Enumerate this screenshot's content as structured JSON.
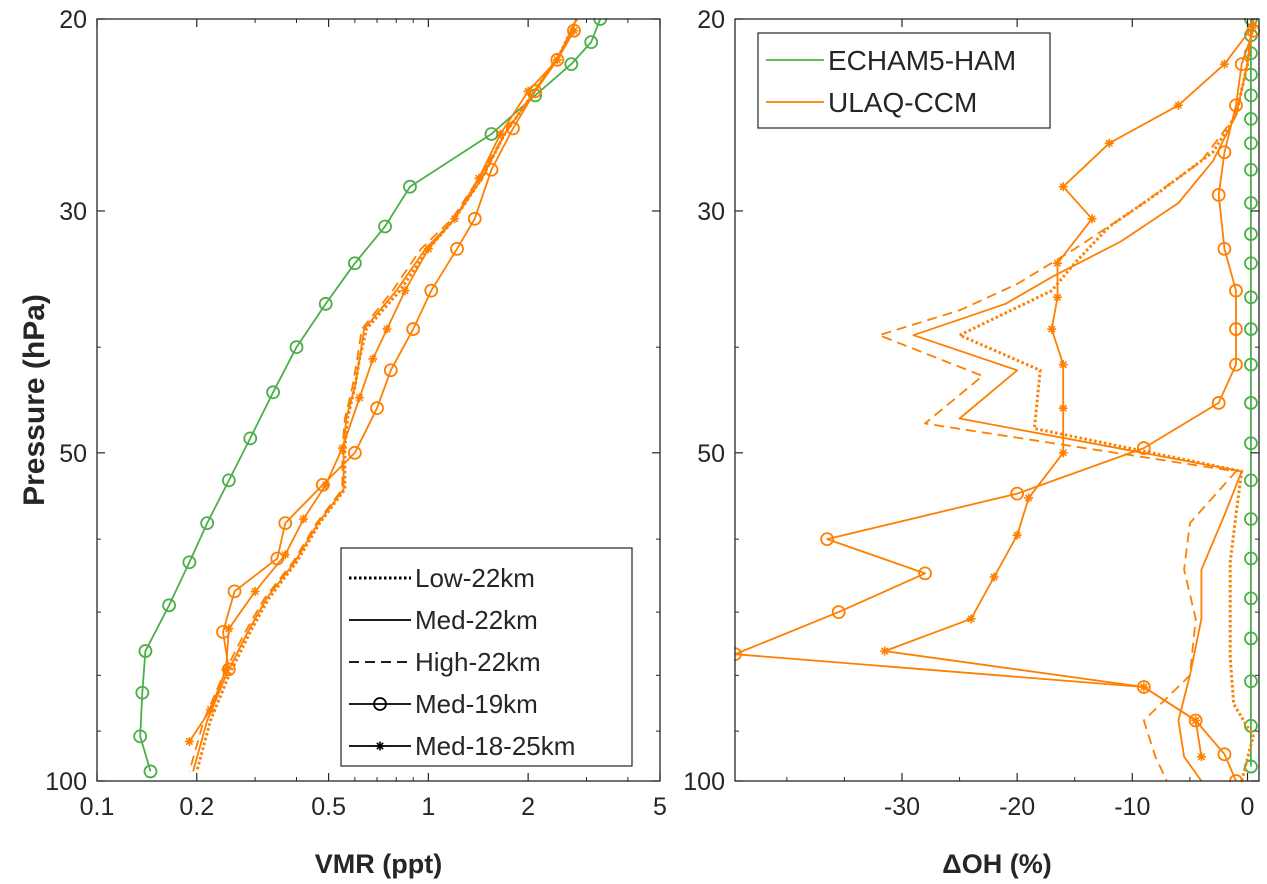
{
  "colors": {
    "green": "#4daf4a",
    "orange": "#ff7f00",
    "axis": "#262626"
  },
  "chart_data": [
    {
      "type": "line",
      "xscale": "log",
      "yscale": "log",
      "yreverse": true,
      "xlim": [
        0.1,
        5
      ],
      "ylim": [
        20,
        100
      ],
      "xticks": [
        0.1,
        0.2,
        0.5,
        1,
        2,
        5
      ],
      "xtick_labels": [
        "0.1",
        "0.2",
        "0.5",
        "1",
        "2",
        "5"
      ],
      "yticks": [
        20,
        30,
        50,
        100
      ],
      "ytick_labels": [
        "20",
        "30",
        "50",
        "100"
      ],
      "xlabel": "VMR (ppt)",
      "ylabel": "Pressure (hPa)",
      "legend": {
        "placement": "bottom-right",
        "items": [
          {
            "label": "Low-22km",
            "style": "dotted"
          },
          {
            "label": "Med-22km",
            "style": "solid"
          },
          {
            "label": "High-22km",
            "style": "dashed"
          },
          {
            "label": "Med-19km",
            "style": "solid",
            "marker": "circle"
          },
          {
            "label": "Med-18-25km",
            "style": "solid",
            "marker": "star"
          }
        ]
      },
      "series": [
        {
          "model": "ECHAM5-HAM",
          "color": "green",
          "style": "solid",
          "marker": "circle",
          "points": [
            [
              3.3,
              20
            ],
            [
              3.1,
              21
            ],
            [
              2.7,
              22
            ],
            [
              2.1,
              23.5
            ],
            [
              1.55,
              25.5
            ],
            [
              0.88,
              28.5
            ],
            [
              0.74,
              31
            ],
            [
              0.6,
              33.5
            ],
            [
              0.49,
              36.5
            ],
            [
              0.4,
              40
            ],
            [
              0.34,
              44
            ],
            [
              0.29,
              48.5
            ],
            [
              0.25,
              53
            ],
            [
              0.215,
              58
            ],
            [
              0.19,
              63
            ],
            [
              0.165,
              69
            ],
            [
              0.14,
              76
            ],
            [
              0.137,
              83
            ],
            [
              0.135,
              91
            ],
            [
              0.145,
              98
            ]
          ]
        },
        {
          "model": "ULAQ-CCM",
          "style": "dotted",
          "points": [
            [
              2.8,
              20
            ],
            [
              2.5,
              21.5
            ],
            [
              2.05,
              23.5
            ],
            [
              1.7,
              25.5
            ],
            [
              1.45,
              28
            ],
            [
              1.2,
              30.5
            ],
            [
              1.0,
              32.5
            ],
            [
              0.82,
              35.5
            ],
            [
              0.65,
              38.5
            ],
            [
              0.62,
              41
            ],
            [
              0.6,
              43.5
            ],
            [
              0.57,
              46.5
            ],
            [
              0.56,
              49.5
            ],
            [
              0.56,
              54
            ],
            [
              0.47,
              58
            ],
            [
              0.4,
              63
            ],
            [
              0.33,
              68
            ],
            [
              0.29,
              73
            ],
            [
              0.25,
              80
            ],
            [
              0.22,
              88
            ],
            [
              0.2,
              98
            ]
          ]
        },
        {
          "model": "ULAQ-CCM",
          "style": "solid",
          "points": [
            [
              2.8,
              20
            ],
            [
              2.5,
              21.5
            ],
            [
              2.05,
              23.5
            ],
            [
              1.7,
              25.5
            ],
            [
              1.45,
              28
            ],
            [
              1.2,
              30.5
            ],
            [
              0.98,
              32.5
            ],
            [
              0.8,
              35.5
            ],
            [
              0.64,
              38.5
            ],
            [
              0.62,
              41
            ],
            [
              0.6,
              43.5
            ],
            [
              0.565,
              46.5
            ],
            [
              0.555,
              49.5
            ],
            [
              0.555,
              54
            ],
            [
              0.465,
              58
            ],
            [
              0.395,
              63
            ],
            [
              0.325,
              68
            ],
            [
              0.285,
              73
            ],
            [
              0.245,
              80
            ],
            [
              0.215,
              88
            ],
            [
              0.195,
              98
            ]
          ]
        },
        {
          "model": "ULAQ-CCM",
          "style": "dashed",
          "points": [
            [
              2.8,
              20
            ],
            [
              2.5,
              21.5
            ],
            [
              2.05,
              23.5
            ],
            [
              1.7,
              25.5
            ],
            [
              1.42,
              28
            ],
            [
              1.18,
              30.5
            ],
            [
              0.95,
              32.5
            ],
            [
              0.78,
              35.5
            ],
            [
              0.63,
              38.5
            ],
            [
              0.61,
              41
            ],
            [
              0.59,
              43.5
            ],
            [
              0.56,
              46.5
            ],
            [
              0.55,
              49.5
            ],
            [
              0.55,
              54
            ],
            [
              0.46,
              58
            ],
            [
              0.39,
              63
            ],
            [
              0.32,
              68
            ],
            [
              0.28,
              73
            ],
            [
              0.24,
              80
            ],
            [
              0.21,
              88
            ],
            [
              0.19,
              98
            ]
          ]
        },
        {
          "model": "ULAQ-CCM",
          "style": "solid",
          "marker": "circle",
          "points": [
            [
              2.75,
              20.5
            ],
            [
              2.45,
              21.8
            ],
            [
              2.1,
              23.3
            ],
            [
              1.8,
              25.2
            ],
            [
              1.55,
              27.5
            ],
            [
              1.38,
              30.5
            ],
            [
              1.22,
              32.5
            ],
            [
              1.02,
              35.5
            ],
            [
              0.9,
              38.5
            ],
            [
              0.77,
              42
            ],
            [
              0.7,
              45.5
            ],
            [
              0.6,
              50
            ],
            [
              0.48,
              53.5
            ],
            [
              0.37,
              58
            ],
            [
              0.35,
              62.5
            ],
            [
              0.26,
              67
            ],
            [
              0.24,
              73
            ],
            [
              0.25,
              79
            ]
          ]
        },
        {
          "model": "ULAQ-CCM",
          "style": "solid",
          "marker": "star",
          "points": [
            [
              2.75,
              20.5
            ],
            [
              2.45,
              21.8
            ],
            [
              2.0,
              23.3
            ],
            [
              1.65,
              25.5
            ],
            [
              1.42,
              28
            ],
            [
              1.2,
              30.5
            ],
            [
              1.0,
              32.5
            ],
            [
              0.85,
              35.5
            ],
            [
              0.75,
              38.5
            ],
            [
              0.68,
              41
            ],
            [
              0.62,
              44.5
            ],
            [
              0.55,
              49.5
            ],
            [
              0.49,
              53.5
            ],
            [
              0.42,
              57.5
            ],
            [
              0.37,
              62
            ],
            [
              0.3,
              67
            ],
            [
              0.25,
              72.5
            ],
            [
              0.245,
              79
            ],
            [
              0.22,
              86
            ],
            [
              0.19,
              92
            ]
          ]
        }
      ]
    },
    {
      "type": "line",
      "yscale": "log",
      "yreverse": true,
      "xlim": [
        -44.5,
        1
      ],
      "ylim": [
        20,
        100
      ],
      "xticks": [
        -30,
        -20,
        -10,
        0
      ],
      "xtick_labels": [
        "-30",
        "-20",
        "-10",
        "0"
      ],
      "yticks": [
        20,
        30,
        50,
        100
      ],
      "ytick_labels": [
        "20",
        "30",
        "50",
        "100"
      ],
      "xlabel": "ΔOH (%)",
      "legend": {
        "placement": "top-left",
        "items": [
          {
            "label": "ECHAM5-HAM",
            "color": "green"
          },
          {
            "label": "ULAQ-CCM",
            "color": "orange"
          }
        ]
      },
      "series": [
        {
          "model": "ECHAM5-HAM",
          "color": "green",
          "style": "solid",
          "marker": "circle",
          "points": [
            [
              0.3,
              20
            ],
            [
              0.3,
              20.7
            ],
            [
              0.3,
              21.5
            ],
            [
              0.3,
              22.5
            ],
            [
              0.3,
              23.5
            ],
            [
              0.3,
              24.7
            ],
            [
              0.3,
              26
            ],
            [
              0.3,
              27.5
            ],
            [
              0.3,
              29.5
            ],
            [
              0.3,
              31.5
            ],
            [
              0.3,
              33.5
            ],
            [
              0.3,
              36
            ],
            [
              0.3,
              38.5
            ],
            [
              0.3,
              41.5
            ],
            [
              0.3,
              45
            ],
            [
              0.3,
              49
            ],
            [
              0.3,
              53
            ],
            [
              0.3,
              57.5
            ],
            [
              0.3,
              62.5
            ],
            [
              0.3,
              68
            ],
            [
              0.3,
              74
            ],
            [
              0.3,
              81
            ],
            [
              0.3,
              89
            ],
            [
              0.3,
              97
            ]
          ]
        },
        {
          "model": "ULAQ-CCM",
          "style": "dotted",
          "points": [
            [
              0.5,
              20
            ],
            [
              0,
              22
            ],
            [
              -1,
              24.5
            ],
            [
              -3,
              26.5
            ],
            [
              -8,
              29
            ],
            [
              -12,
              31
            ],
            [
              -15,
              33.5
            ],
            [
              -17,
              35.5
            ],
            [
              -25,
              39
            ],
            [
              -18,
              42
            ],
            [
              -18.5,
              47.5
            ],
            [
              -0.5,
              52
            ],
            [
              -1,
              57
            ],
            [
              -1.5,
              63
            ],
            [
              -1.5,
              70
            ],
            [
              -1.5,
              77
            ],
            [
              -1.2,
              85
            ],
            [
              0.5,
              91
            ],
            [
              -0.5,
              100
            ]
          ]
        },
        {
          "model": "ULAQ-CCM",
          "style": "solid",
          "points": [
            [
              0.5,
              20
            ],
            [
              0,
              22
            ],
            [
              -1,
              24.5
            ],
            [
              -3,
              27
            ],
            [
              -6,
              29.5
            ],
            [
              -11,
              32
            ],
            [
              -17,
              34.5
            ],
            [
              -21,
              36.5
            ],
            [
              -29,
              39
            ],
            [
              -20,
              42
            ],
            [
              -25,
              46.5
            ],
            [
              -0.5,
              52
            ],
            [
              -2,
              57
            ],
            [
              -4,
              64
            ],
            [
              -4,
              71
            ],
            [
              -5,
              80
            ],
            [
              -6,
              88
            ],
            [
              -5.5,
              95
            ],
            [
              -4,
              100
            ]
          ]
        },
        {
          "model": "ULAQ-CCM",
          "style": "dashed",
          "points": [
            [
              0.5,
              20
            ],
            [
              0,
              22
            ],
            [
              -1,
              24.5
            ],
            [
              -4,
              27
            ],
            [
              -10,
              30
            ],
            [
              -15,
              32.5
            ],
            [
              -20,
              35
            ],
            [
              -25,
              37
            ],
            [
              -32,
              39
            ],
            [
              -23,
              42.5
            ],
            [
              -28,
              47
            ],
            [
              -1,
              52
            ],
            [
              -5,
              58
            ],
            [
              -5.5,
              64
            ],
            [
              -4.5,
              71
            ],
            [
              -5,
              80
            ],
            [
              -9,
              88
            ],
            [
              -8,
              95
            ],
            [
              -7,
              100
            ]
          ]
        },
        {
          "model": "ULAQ-CCM",
          "style": "solid",
          "marker": "circle",
          "points": [
            [
              0.5,
              20.5
            ],
            [
              -0.5,
              22
            ],
            [
              -1,
              24
            ],
            [
              -2,
              26.5
            ],
            [
              -2.5,
              29
            ],
            [
              -2,
              32.5
            ],
            [
              -1,
              35.5
            ],
            [
              -1,
              38.5
            ],
            [
              -1,
              41.5
            ],
            [
              -2.5,
              45
            ],
            [
              -9,
              49.5
            ],
            [
              -20,
              54.5
            ],
            [
              -36.5,
              60
            ],
            [
              -28,
              64.5
            ],
            [
              -35.5,
              70
            ],
            [
              -44.5,
              76.5
            ],
            [
              -9,
              82
            ],
            [
              -4.5,
              88
            ],
            [
              -2,
              94.5
            ],
            [
              -1,
              100
            ]
          ]
        },
        {
          "model": "ULAQ-CCM",
          "style": "solid",
          "marker": "star",
          "points": [
            [
              0.5,
              20.3
            ],
            [
              -2,
              22
            ],
            [
              -6,
              24
            ],
            [
              -12,
              26
            ],
            [
              -16,
              28.5
            ],
            [
              -13.5,
              30.5
            ],
            [
              -16.5,
              33.5
            ],
            [
              -16.5,
              36
            ],
            [
              -17,
              38.5
            ],
            [
              -16,
              41.5
            ],
            [
              -16,
              45.5
            ],
            [
              -16,
              50
            ],
            [
              -19,
              55
            ],
            [
              -20,
              59.5
            ],
            [
              -22,
              65
            ],
            [
              -24,
              71
            ],
            [
              -31.5,
              76
            ],
            [
              -9,
              82
            ],
            [
              -4.5,
              88
            ],
            [
              -4,
              95
            ]
          ]
        }
      ]
    }
  ]
}
